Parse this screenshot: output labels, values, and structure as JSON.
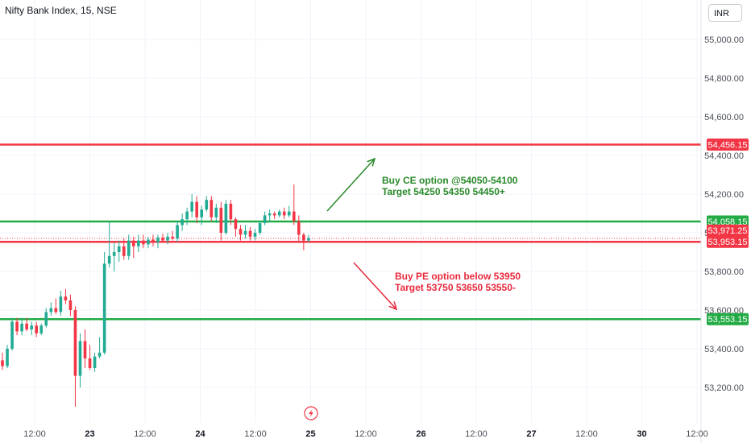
{
  "header": {
    "symbol": "Nifty Bank Index, 15, NSE",
    "currency": "INR"
  },
  "chart_data": {
    "type": "candlestick",
    "title": "Nifty Bank Index, 15, NSE",
    "ylim": [
      53050,
      55150
    ],
    "y_ticks": [
      {
        "value": 55000,
        "label": "55,000.00"
      },
      {
        "value": 54800,
        "label": "54,800.00"
      },
      {
        "value": 54600,
        "label": "54,600.00"
      },
      {
        "value": 54400,
        "label": "54,400.00"
      },
      {
        "value": 54200,
        "label": "54,200.00"
      },
      {
        "value": 54000,
        "label": "54,000.00"
      },
      {
        "value": 53800,
        "label": "53,800.00"
      },
      {
        "value": 53600,
        "label": "53,600.00"
      },
      {
        "value": 53400,
        "label": "53,400.00"
      },
      {
        "value": 53200,
        "label": "53,200.00"
      }
    ],
    "x_ticks": [
      {
        "label": "12:00",
        "bold": false
      },
      {
        "label": "23",
        "bold": true
      },
      {
        "label": "12:00",
        "bold": false
      },
      {
        "label": "24",
        "bold": true
      },
      {
        "label": "12:00",
        "bold": false
      },
      {
        "label": "25",
        "bold": true
      },
      {
        "label": "12:00",
        "bold": false
      },
      {
        "label": "26",
        "bold": true
      },
      {
        "label": "12:00",
        "bold": false
      },
      {
        "label": "27",
        "bold": true
      },
      {
        "label": "12:00",
        "bold": false
      },
      {
        "label": "30",
        "bold": true
      },
      {
        "label": "12:00",
        "bold": false
      }
    ],
    "candles": [
      {
        "o": 53340,
        "h": 53380,
        "l": 53290,
        "c": 53310
      },
      {
        "o": 53310,
        "h": 53420,
        "l": 53300,
        "c": 53400
      },
      {
        "o": 53400,
        "h": 53560,
        "l": 53390,
        "c": 53540
      },
      {
        "o": 53540,
        "h": 53560,
        "l": 53470,
        "c": 53490
      },
      {
        "o": 53490,
        "h": 53560,
        "l": 53470,
        "c": 53530
      },
      {
        "o": 53530,
        "h": 53560,
        "l": 53490,
        "c": 53500
      },
      {
        "o": 53500,
        "h": 53540,
        "l": 53470,
        "c": 53520
      },
      {
        "o": 53520,
        "h": 53540,
        "l": 53460,
        "c": 53480
      },
      {
        "o": 53480,
        "h": 53530,
        "l": 53470,
        "c": 53520
      },
      {
        "o": 53520,
        "h": 53610,
        "l": 53510,
        "c": 53590
      },
      {
        "o": 53590,
        "h": 53640,
        "l": 53570,
        "c": 53610
      },
      {
        "o": 53610,
        "h": 53660,
        "l": 53580,
        "c": 53590
      },
      {
        "o": 53590,
        "h": 53700,
        "l": 53570,
        "c": 53670
      },
      {
        "o": 53670,
        "h": 53710,
        "l": 53630,
        "c": 53650
      },
      {
        "o": 53650,
        "h": 53680,
        "l": 53570,
        "c": 53600
      },
      {
        "o": 53600,
        "h": 53620,
        "l": 53100,
        "c": 53260
      },
      {
        "o": 53260,
        "h": 53480,
        "l": 53200,
        "c": 53440
      },
      {
        "o": 53440,
        "h": 53500,
        "l": 53300,
        "c": 53350
      },
      {
        "o": 53350,
        "h": 53420,
        "l": 53290,
        "c": 53300
      },
      {
        "o": 53300,
        "h": 53380,
        "l": 53280,
        "c": 53360
      },
      {
        "o": 53360,
        "h": 53460,
        "l": 53350,
        "c": 53380
      },
      {
        "o": 53380,
        "h": 53900,
        "l": 53370,
        "c": 53840
      },
      {
        "o": 53840,
        "h": 54060,
        "l": 53820,
        "c": 53880
      },
      {
        "o": 53880,
        "h": 53950,
        "l": 53800,
        "c": 53900
      },
      {
        "o": 53900,
        "h": 53960,
        "l": 53850,
        "c": 53930
      },
      {
        "o": 53930,
        "h": 53970,
        "l": 53860,
        "c": 53880
      },
      {
        "o": 53880,
        "h": 53990,
        "l": 53860,
        "c": 53960
      },
      {
        "o": 53960,
        "h": 53980,
        "l": 53870,
        "c": 53930
      },
      {
        "o": 53930,
        "h": 53990,
        "l": 53900,
        "c": 53960
      },
      {
        "o": 53960,
        "h": 53990,
        "l": 53920,
        "c": 53940
      },
      {
        "o": 53940,
        "h": 53980,
        "l": 53920,
        "c": 53965
      },
      {
        "o": 53965,
        "h": 53990,
        "l": 53930,
        "c": 53950
      },
      {
        "o": 53950,
        "h": 53990,
        "l": 53920,
        "c": 53975
      },
      {
        "o": 53975,
        "h": 53995,
        "l": 53950,
        "c": 53960
      },
      {
        "o": 53960,
        "h": 54000,
        "l": 53940,
        "c": 53980
      },
      {
        "o": 53980,
        "h": 54010,
        "l": 53960,
        "c": 53970
      },
      {
        "o": 53970,
        "h": 54060,
        "l": 53950,
        "c": 54040
      },
      {
        "o": 54040,
        "h": 54100,
        "l": 54010,
        "c": 54070
      },
      {
        "o": 54070,
        "h": 54130,
        "l": 54040,
        "c": 54110
      },
      {
        "o": 54110,
        "h": 54200,
        "l": 54080,
        "c": 54160
      },
      {
        "o": 54160,
        "h": 54190,
        "l": 54050,
        "c": 54080
      },
      {
        "o": 54080,
        "h": 54140,
        "l": 54040,
        "c": 54120
      },
      {
        "o": 54120,
        "h": 54190,
        "l": 54110,
        "c": 54170
      },
      {
        "o": 54170,
        "h": 54190,
        "l": 54060,
        "c": 54080
      },
      {
        "o": 54080,
        "h": 54150,
        "l": 54050,
        "c": 54130
      },
      {
        "o": 54130,
        "h": 54160,
        "l": 53960,
        "c": 54000
      },
      {
        "o": 54000,
        "h": 54170,
        "l": 53990,
        "c": 54150
      },
      {
        "o": 54150,
        "h": 54170,
        "l": 54040,
        "c": 54070
      },
      {
        "o": 54070,
        "h": 54080,
        "l": 53980,
        "c": 54020
      },
      {
        "o": 54020,
        "h": 54040,
        "l": 53960,
        "c": 53990
      },
      {
        "o": 53990,
        "h": 54040,
        "l": 53970,
        "c": 54010
      },
      {
        "o": 54010,
        "h": 54030,
        "l": 53960,
        "c": 53980
      },
      {
        "o": 53980,
        "h": 54020,
        "l": 53960,
        "c": 54000
      },
      {
        "o": 54000,
        "h": 54060,
        "l": 53990,
        "c": 54050
      },
      {
        "o": 54050,
        "h": 54110,
        "l": 54040,
        "c": 54090
      },
      {
        "o": 54090,
        "h": 54120,
        "l": 54060,
        "c": 54100
      },
      {
        "o": 54100,
        "h": 54110,
        "l": 54070,
        "c": 54090
      },
      {
        "o": 54090,
        "h": 54120,
        "l": 54080,
        "c": 54110
      },
      {
        "o": 54110,
        "h": 54130,
        "l": 54070,
        "c": 54090
      },
      {
        "o": 54090,
        "h": 54140,
        "l": 54080,
        "c": 54110
      },
      {
        "o": 54110,
        "h": 54250,
        "l": 54040,
        "c": 54060
      },
      {
        "o": 54060,
        "h": 54090,
        "l": 53950,
        "c": 53990
      },
      {
        "o": 53990,
        "h": 54000,
        "l": 53910,
        "c": 53960
      },
      {
        "o": 53960,
        "h": 53990,
        "l": 53950,
        "c": 53972
      }
    ],
    "horizontal_lines": [
      {
        "value": 54456.15,
        "color": "#f23645",
        "label": "54,456.15"
      },
      {
        "value": 54058.15,
        "color": "#22ab45",
        "label": "54,058.15"
      },
      {
        "value": 53953.15,
        "color": "#f23645",
        "label": "53,953.15"
      },
      {
        "value": 53553.15,
        "color": "#22ab45",
        "label": "53,553.15"
      }
    ],
    "last_price": {
      "value": 53971.25,
      "label": "53,971.25",
      "color": "#f23645"
    },
    "annotations": [
      {
        "lines": [
          "Buy CE option @54050-54100",
          "Target 54250 54350 54450+"
        ],
        "color": "#2a8a2a",
        "arrow": "up"
      },
      {
        "lines": [
          "Buy PE option below 53950",
          "Target 53750 53650 53550-"
        ],
        "color": "#e8293c",
        "arrow": "down"
      }
    ],
    "colors": {
      "up": "#22ab94",
      "down": "#f23645",
      "grid": "#f0f3fa",
      "axis_text": "#4a4e57"
    }
  }
}
